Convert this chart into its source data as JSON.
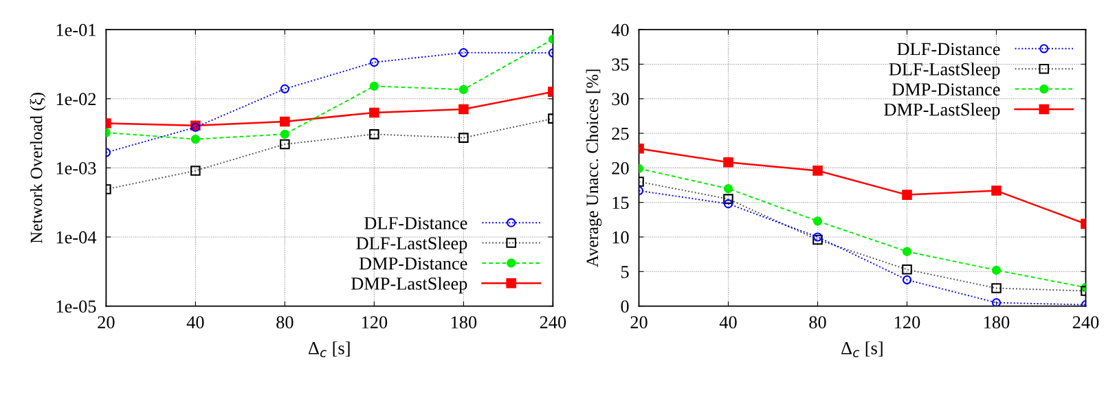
{
  "chart_data": [
    {
      "type": "line",
      "xlabel": "Δ$_{c}$ [s]",
      "ylabel": "Network Overload (ξ)",
      "categories": [
        "20",
        "40",
        "80",
        "120",
        "180",
        "240"
      ],
      "log": "y",
      "ylim": [
        1e-05,
        0.1
      ],
      "yticks": [
        {
          "value": 1e-05,
          "label": "1e-05"
        },
        {
          "value": 0.0001,
          "label": "1e-04"
        },
        {
          "value": 0.001,
          "label": "1e-03"
        },
        {
          "value": 0.01,
          "label": "1e-02"
        },
        {
          "value": 0.1,
          "label": "1e-01"
        }
      ],
      "grid": true,
      "legend": "bottom right",
      "series": [
        {
          "name": "DLF-Distance",
          "color": "#0000ff",
          "marker": "circle",
          "line_style": "dotted",
          "values": [
            0.00167,
            0.00387,
            0.0139,
            0.0337,
            0.0465,
            0.046
          ]
        },
        {
          "name": "DLF-LastSleep",
          "color": "#555555",
          "marker": "square",
          "line_style": "dotted",
          "values": [
            0.00049,
            0.00091,
            0.0022,
            0.00307,
            0.00272,
            0.00516
          ]
        },
        {
          "name": "DMP-Distance",
          "color": "#00ee00",
          "marker": "circle",
          "line_style": "dashed",
          "values": [
            0.00324,
            0.0026,
            0.00307,
            0.0152,
            0.0136,
            0.0725
          ]
        },
        {
          "name": "DMP-LastSleep",
          "color": "#ff0000",
          "marker": "square",
          "line_style": "solid",
          "values": [
            0.00442,
            0.0041,
            0.00468,
            0.0063,
            0.00705,
            0.0126
          ]
        }
      ]
    },
    {
      "type": "line",
      "xlabel": "Δ$_{c}$ [s]",
      "ylabel": "Average Unacc. Choices [%]",
      "categories": [
        "20",
        "40",
        "80",
        "120",
        "180",
        "240"
      ],
      "ylim": [
        0,
        40
      ],
      "yticks": [
        0,
        5,
        10,
        15,
        20,
        25,
        30,
        35,
        40
      ],
      "grid": true,
      "legend": "top right",
      "series": [
        {
          "name": "DLF-Distance",
          "color": "#0000ff",
          "marker": "circle",
          "line_style": "dotted",
          "values": [
            16.7,
            14.8,
            10.0,
            3.8,
            0.5,
            0.2
          ]
        },
        {
          "name": "DLF-LastSleep",
          "color": "#555555",
          "marker": "square",
          "line_style": "dotted",
          "values": [
            18.0,
            15.5,
            9.6,
            5.3,
            2.6,
            2.2
          ]
        },
        {
          "name": "DMP-Distance",
          "color": "#00ee00",
          "marker": "circle",
          "line_style": "dashed",
          "values": [
            19.9,
            17.0,
            12.3,
            7.9,
            5.2,
            2.7
          ]
        },
        {
          "name": "DMP-LastSleep",
          "color": "#ff0000",
          "marker": "square",
          "line_style": "solid",
          "values": [
            22.8,
            20.8,
            19.6,
            16.1,
            16.7,
            11.9
          ]
        }
      ]
    }
  ]
}
